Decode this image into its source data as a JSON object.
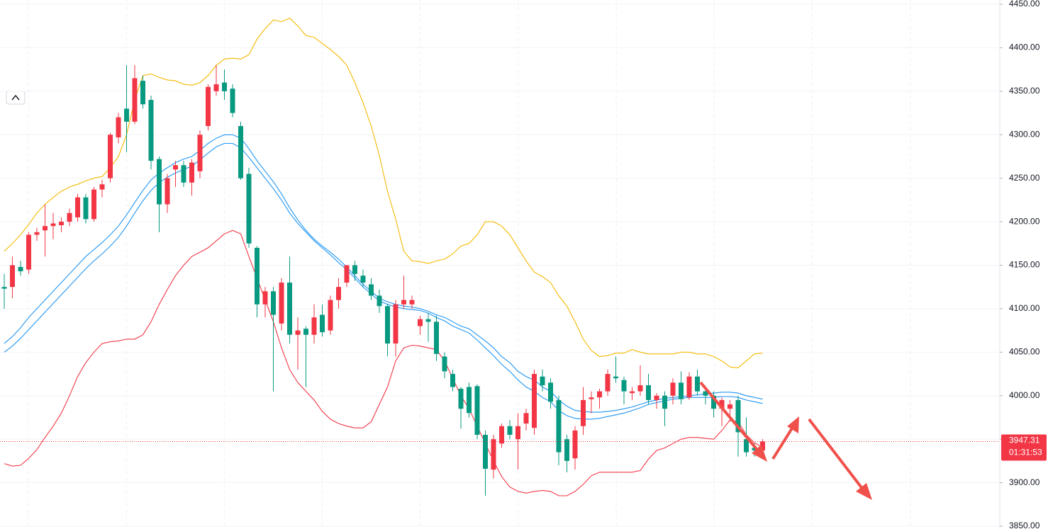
{
  "chart_data": {
    "type": "candlestick",
    "ylim": [
      3850,
      4450
    ],
    "yticks": [
      {
        "value": 3850,
        "label": "3850.00"
      },
      {
        "value": 3900,
        "label": "3900.00"
      },
      {
        "value": 3950,
        "label": "3950.00"
      },
      {
        "value": 4000,
        "label": "4000.00"
      },
      {
        "value": 4050,
        "label": "4050.00"
      },
      {
        "value": 4100,
        "label": "4100.00"
      },
      {
        "value": 4150,
        "label": "4150.00"
      },
      {
        "value": 4200,
        "label": "4200.00"
      },
      {
        "value": 4250,
        "label": "4250.00"
      },
      {
        "value": 4300,
        "label": "4300.00"
      },
      {
        "value": 4350,
        "label": "4350.00"
      },
      {
        "value": 4400,
        "label": "4400.00"
      },
      {
        "value": 4450,
        "label": "4450.00"
      }
    ],
    "grid": true,
    "up_color": "#f23645",
    "down_color": "#089981",
    "ohlc": [
      [
        4125,
        4140,
        4100,
        4123
      ],
      [
        4125,
        4160,
        4112,
        4150
      ],
      [
        4148,
        4155,
        4138,
        4143
      ],
      [
        4145,
        4188,
        4140,
        4185
      ],
      [
        4185,
        4193,
        4178,
        4188
      ],
      [
        4190,
        4220,
        4160,
        4195
      ],
      [
        4195,
        4210,
        4180,
        4198
      ],
      [
        4196,
        4205,
        4188,
        4200
      ],
      [
        4200,
        4215,
        4195,
        4210
      ],
      [
        4205,
        4232,
        4200,
        4228
      ],
      [
        4228,
        4232,
        4198,
        4203
      ],
      [
        4203,
        4240,
        4200,
        4237
      ],
      [
        4237,
        4248,
        4228,
        4243
      ],
      [
        4250,
        4302,
        4245,
        4300
      ],
      [
        4297,
        4325,
        4290,
        4320
      ],
      [
        4330,
        4380,
        4280,
        4315
      ],
      [
        4315,
        4380,
        4312,
        4365
      ],
      [
        4362,
        4368,
        4330,
        4335
      ],
      [
        4340,
        4345,
        4260,
        4270
      ],
      [
        4272,
        4275,
        4188,
        4220
      ],
      [
        4220,
        4255,
        4210,
        4250
      ],
      [
        4260,
        4270,
        4240,
        4265
      ],
      [
        4265,
        4270,
        4240,
        4245
      ],
      [
        4245,
        4272,
        4230,
        4268
      ],
      [
        4258,
        4305,
        4250,
        4300
      ],
      [
        4310,
        4358,
        4305,
        4355
      ],
      [
        4350,
        4380,
        4345,
        4358
      ],
      [
        4360,
        4375,
        4340,
        4350
      ],
      [
        4353,
        4358,
        4320,
        4325
      ],
      [
        4310,
        4315,
        4248,
        4250
      ],
      [
        4255,
        4262,
        4170,
        4175
      ],
      [
        4170,
        4172,
        4090,
        4105
      ],
      [
        4105,
        4125,
        4090,
        4120
      ],
      [
        4120,
        4125,
        4005,
        4093
      ],
      [
        4083,
        4135,
        4075,
        4130
      ],
      [
        4130,
        4160,
        4060,
        4070
      ],
      [
        4070,
        4090,
        4030,
        4075
      ],
      [
        4077,
        4080,
        4010,
        4070
      ],
      [
        4070,
        4105,
        4060,
        4090
      ],
      [
        4093,
        4105,
        4068,
        4073
      ],
      [
        4075,
        4115,
        4070,
        4110
      ],
      [
        4110,
        4135,
        4100,
        4125
      ],
      [
        4130,
        4150,
        4125,
        4150
      ],
      [
        4150,
        4155,
        4132,
        4140
      ],
      [
        4138,
        4145,
        4125,
        4130
      ],
      [
        4128,
        4135,
        4110,
        4115
      ],
      [
        4115,
        4122,
        4095,
        4103
      ],
      [
        4103,
        4105,
        4045,
        4060
      ],
      [
        4060,
        4110,
        4045,
        4105
      ],
      [
        4105,
        4138,
        4100,
        4110
      ],
      [
        4105,
        4115,
        4100,
        4110
      ],
      [
        4080,
        4092,
        4070,
        4088
      ],
      [
        4088,
        4095,
        4062,
        4085
      ],
      [
        4085,
        4092,
        4040,
        4048
      ],
      [
        4045,
        4050,
        4020,
        4028
      ],
      [
        4025,
        4030,
        4005,
        4010
      ],
      [
        4008,
        4010,
        3962,
        3985
      ],
      [
        4010,
        4015,
        3975,
        3980
      ],
      [
        4011,
        4013,
        3950,
        3955
      ],
      [
        3955,
        3960,
        3885,
        3916
      ],
      [
        3915,
        3955,
        3905,
        3950
      ],
      [
        3945,
        3968,
        3940,
        3965
      ],
      [
        3965,
        3972,
        3950,
        3955
      ],
      [
        3950,
        3980,
        3915,
        3965
      ],
      [
        3968,
        3985,
        3960,
        3980
      ],
      [
        3963,
        4030,
        3955,
        4025
      ],
      [
        4022,
        4030,
        4005,
        4012
      ],
      [
        4015,
        4020,
        3985,
        3993
      ],
      [
        3995,
        4000,
        3920,
        3935
      ],
      [
        3950,
        3955,
        3912,
        3925
      ],
      [
        3928,
        3965,
        3915,
        3960
      ],
      [
        3965,
        4010,
        3955,
        3995
      ],
      [
        3996,
        4005,
        3980,
        3998
      ],
      [
        3998,
        4008,
        3985,
        4005
      ],
      [
        4005,
        4030,
        4000,
        4025
      ],
      [
        4022,
        4045,
        4015,
        4020
      ],
      [
        4018,
        4022,
        3990,
        4005
      ],
      [
        4003,
        4010,
        3995,
        4005
      ],
      [
        4005,
        4035,
        4000,
        4012
      ],
      [
        4012,
        4025,
        3990,
        3995
      ],
      [
        3995,
        4003,
        3985,
        4000
      ],
      [
        4000,
        4005,
        3965,
        3985
      ],
      [
        4000,
        4020,
        3990,
        4015
      ],
      [
        4015,
        4028,
        3990,
        3996
      ],
      [
        3998,
        4027,
        3995,
        4022
      ],
      [
        4022,
        4030,
        4000,
        4005
      ],
      [
        4005,
        4010,
        3990,
        4000
      ],
      [
        4000,
        4005,
        3975,
        3985
      ],
      [
        3985,
        3998,
        3965,
        3995
      ],
      [
        3985,
        3995,
        3970,
        3990
      ],
      [
        3995,
        4000,
        3930,
        3958
      ],
      [
        3950,
        3975,
        3930,
        3935
      ],
      [
        3940,
        3945,
        3930,
        3937
      ],
      [
        3937,
        3950,
        3930,
        3947.31
      ]
    ],
    "overlays": [
      {
        "color": "#f5b800",
        "values": [
          4166,
          4175,
          4185,
          4197,
          4210,
          4220,
          4228,
          4235,
          4240,
          4243,
          4247,
          4250,
          4252,
          4262,
          4275,
          4300,
          4340,
          4368,
          4370,
          4366,
          4363,
          4362,
          4358,
          4357,
          4360,
          4368,
          4380,
          4387,
          4388,
          4387,
          4392,
          4410,
          4422,
          4432,
          4430,
          4434,
          4425,
          4414,
          4412,
          4405,
          4398,
          4390,
          4380,
          4360,
          4337,
          4310,
          4276,
          4235,
          4203,
          4166,
          4155,
          4154,
          4152,
          4155,
          4157,
          4163,
          4172,
          4175,
          4185,
          4200,
          4200,
          4195,
          4185,
          4170,
          4155,
          4142,
          4137,
          4130,
          4115,
          4103,
          4085,
          4065,
          4052,
          4045,
          4046,
          4049,
          4049,
          4053,
          4050,
          4048,
          4048,
          4048,
          4048,
          4050,
          4050,
          4048,
          4048,
          4045,
          4040,
          4033,
          4032,
          4040,
          4048,
          4049
        ]
      },
      {
        "color": "#f23645",
        "values": [
          3922,
          3919,
          3920,
          3928,
          3938,
          3952,
          3965,
          3980,
          4000,
          4022,
          4038,
          4050,
          4060,
          4062,
          4063,
          4065,
          4065,
          4070,
          4085,
          4105,
          4122,
          4138,
          4150,
          4160,
          4165,
          4170,
          4178,
          4186,
          4190,
          4186,
          4160,
          4135,
          4110,
          4085,
          4055,
          4030,
          4015,
          4005,
          3995,
          3982,
          3973,
          3968,
          3965,
          3963,
          3963,
          3970,
          3990,
          4010,
          4040,
          4055,
          4058,
          4057,
          4055,
          4053,
          4040,
          4020,
          4000,
          3985,
          3965,
          3945,
          3925,
          3907,
          3895,
          3890,
          3888,
          3890,
          3891,
          3890,
          3885,
          3885,
          3890,
          3898,
          3908,
          3912,
          3912,
          3912,
          3912,
          3912,
          3914,
          3927,
          3937,
          3940,
          3945,
          3950,
          3952,
          3952,
          3951,
          3950,
          3960,
          3972,
          3970,
          3955,
          3946,
          3940
        ]
      },
      {
        "color": "#2196f3",
        "values": [
          4060,
          4068,
          4078,
          4090,
          4100,
          4110,
          4120,
          4130,
          4140,
          4150,
          4160,
          4168,
          4176,
          4185,
          4195,
          4208,
          4222,
          4236,
          4248,
          4256,
          4262,
          4268,
          4272,
          4275,
          4282,
          4290,
          4296,
          4300,
          4300,
          4296,
          4284,
          4270,
          4258,
          4246,
          4232,
          4216,
          4202,
          4190,
          4180,
          4172,
          4165,
          4157,
          4148,
          4138,
          4128,
          4120,
          4112,
          4108,
          4105,
          4103,
          4102,
          4100,
          4097,
          4093,
          4090,
          4085,
          4080,
          4077,
          4070,
          4063,
          4055,
          4045,
          4038,
          4028,
          4022,
          4018,
          4010,
          4005,
          3995,
          3988,
          3983,
          3982,
          3981,
          3981,
          3982,
          3983,
          3985,
          3987,
          3990,
          3993,
          3995,
          3997,
          3998,
          3999,
          4000,
          4001,
          4002,
          4003,
          4004,
          4004,
          4003,
          4000,
          3998,
          3996
        ]
      },
      {
        "color": "#2196f3",
        "values": [
          4050,
          4057,
          4066,
          4076,
          4086,
          4096,
          4106,
          4116,
          4126,
          4136,
          4146,
          4155,
          4163,
          4172,
          4182,
          4195,
          4210,
          4224,
          4236,
          4245,
          4251,
          4256,
          4260,
          4264,
          4271,
          4279,
          4286,
          4290,
          4290,
          4285,
          4274,
          4262,
          4250,
          4238,
          4225,
          4210,
          4198,
          4188,
          4178,
          4170,
          4162,
          4153,
          4145,
          4135,
          4125,
          4117,
          4109,
          4105,
          4102,
          4100,
          4099,
          4098,
          4095,
          4090,
          4086,
          4080,
          4076,
          4072,
          4064,
          4055,
          4046,
          4036,
          4028,
          4018,
          4010,
          4005,
          3998,
          3993,
          3983,
          3977,
          3974,
          3973,
          3973,
          3974,
          3976,
          3978,
          3980,
          3983,
          3986,
          3990,
          3992,
          3994,
          3996,
          3997,
          3998,
          3998,
          3998,
          3998,
          3999,
          3999,
          3998,
          3995,
          3993,
          3991
        ]
      }
    ],
    "last_price": 3947.31,
    "countdown": "01:31:53",
    "last_price_color": "#f23645"
  }
}
